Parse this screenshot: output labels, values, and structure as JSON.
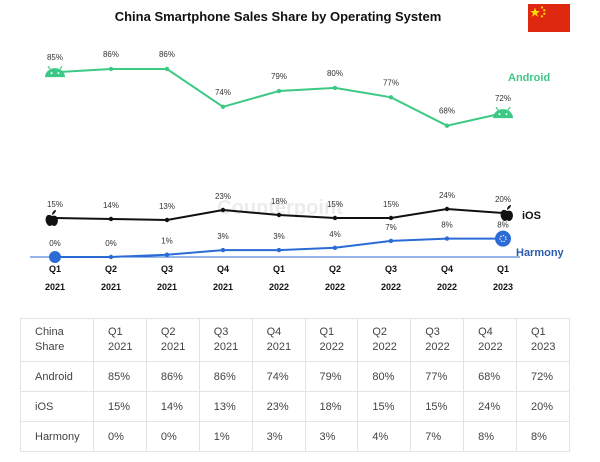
{
  "title": "China Smartphone Sales Share by Operating System",
  "flag_name": "China flag",
  "watermark": "Counterpoint",
  "colors": {
    "android": "#3cc985",
    "ios": "#111111",
    "harmony": "#2b6bd6",
    "harmony_label": "#2a5cad",
    "flag_red": "#de2910",
    "flag_star": "#ffde00"
  },
  "chart_data": {
    "type": "line",
    "title": "China Smartphone Sales Share by Operating System",
    "categories": [
      [
        "Q1",
        "2021"
      ],
      [
        "Q2",
        "2021"
      ],
      [
        "Q3",
        "2021"
      ],
      [
        "Q4",
        "2021"
      ],
      [
        "Q1",
        "2022"
      ],
      [
        "Q2",
        "2022"
      ],
      [
        "Q3",
        "2022"
      ],
      [
        "Q4",
        "2022"
      ],
      [
        "Q1",
        "2023"
      ]
    ],
    "series": [
      {
        "name": "Android",
        "values": [
          85,
          86,
          86,
          74,
          79,
          80,
          77,
          68,
          72
        ],
        "labels": [
          "85%",
          "86%",
          "86%",
          "74%",
          "79%",
          "80%",
          "77%",
          "68%",
          "72%"
        ]
      },
      {
        "name": "iOS",
        "values": [
          15,
          14,
          13,
          23,
          18,
          15,
          15,
          24,
          20
        ],
        "labels": [
          "15%",
          "14%",
          "13%",
          "23%",
          "18%",
          "15%",
          "15%",
          "24%",
          "20%"
        ]
      },
      {
        "name": "Harmony",
        "values": [
          0,
          0,
          1,
          3,
          3,
          4,
          7,
          8,
          8
        ],
        "labels": [
          "0%",
          "0%",
          "1%",
          "3%",
          "3%",
          "4%",
          "7%",
          "8%",
          "8%"
        ]
      }
    ],
    "unit": "%",
    "grid": false,
    "legend": "series names at right end of each line"
  },
  "table": {
    "header": [
      [
        "China",
        "Share"
      ],
      [
        "Q1",
        "2021"
      ],
      [
        "Q2",
        "2021"
      ],
      [
        "Q3",
        "2021"
      ],
      [
        "Q4",
        "2021"
      ],
      [
        "Q1",
        "2022"
      ],
      [
        "Q2",
        "2022"
      ],
      [
        "Q3",
        "2022"
      ],
      [
        "Q4",
        "2022"
      ],
      [
        "Q1",
        "2023"
      ]
    ],
    "rows": [
      [
        "Android",
        "85%",
        "86%",
        "86%",
        "74%",
        "79%",
        "80%",
        "77%",
        "68%",
        "72%"
      ],
      [
        "iOS",
        "15%",
        "14%",
        "13%",
        "23%",
        "18%",
        "15%",
        "15%",
        "24%",
        "20%"
      ],
      [
        "Harmony",
        "0%",
        "0%",
        "1%",
        "3%",
        "3%",
        "4%",
        "7%",
        "8%",
        "8%"
      ]
    ]
  }
}
